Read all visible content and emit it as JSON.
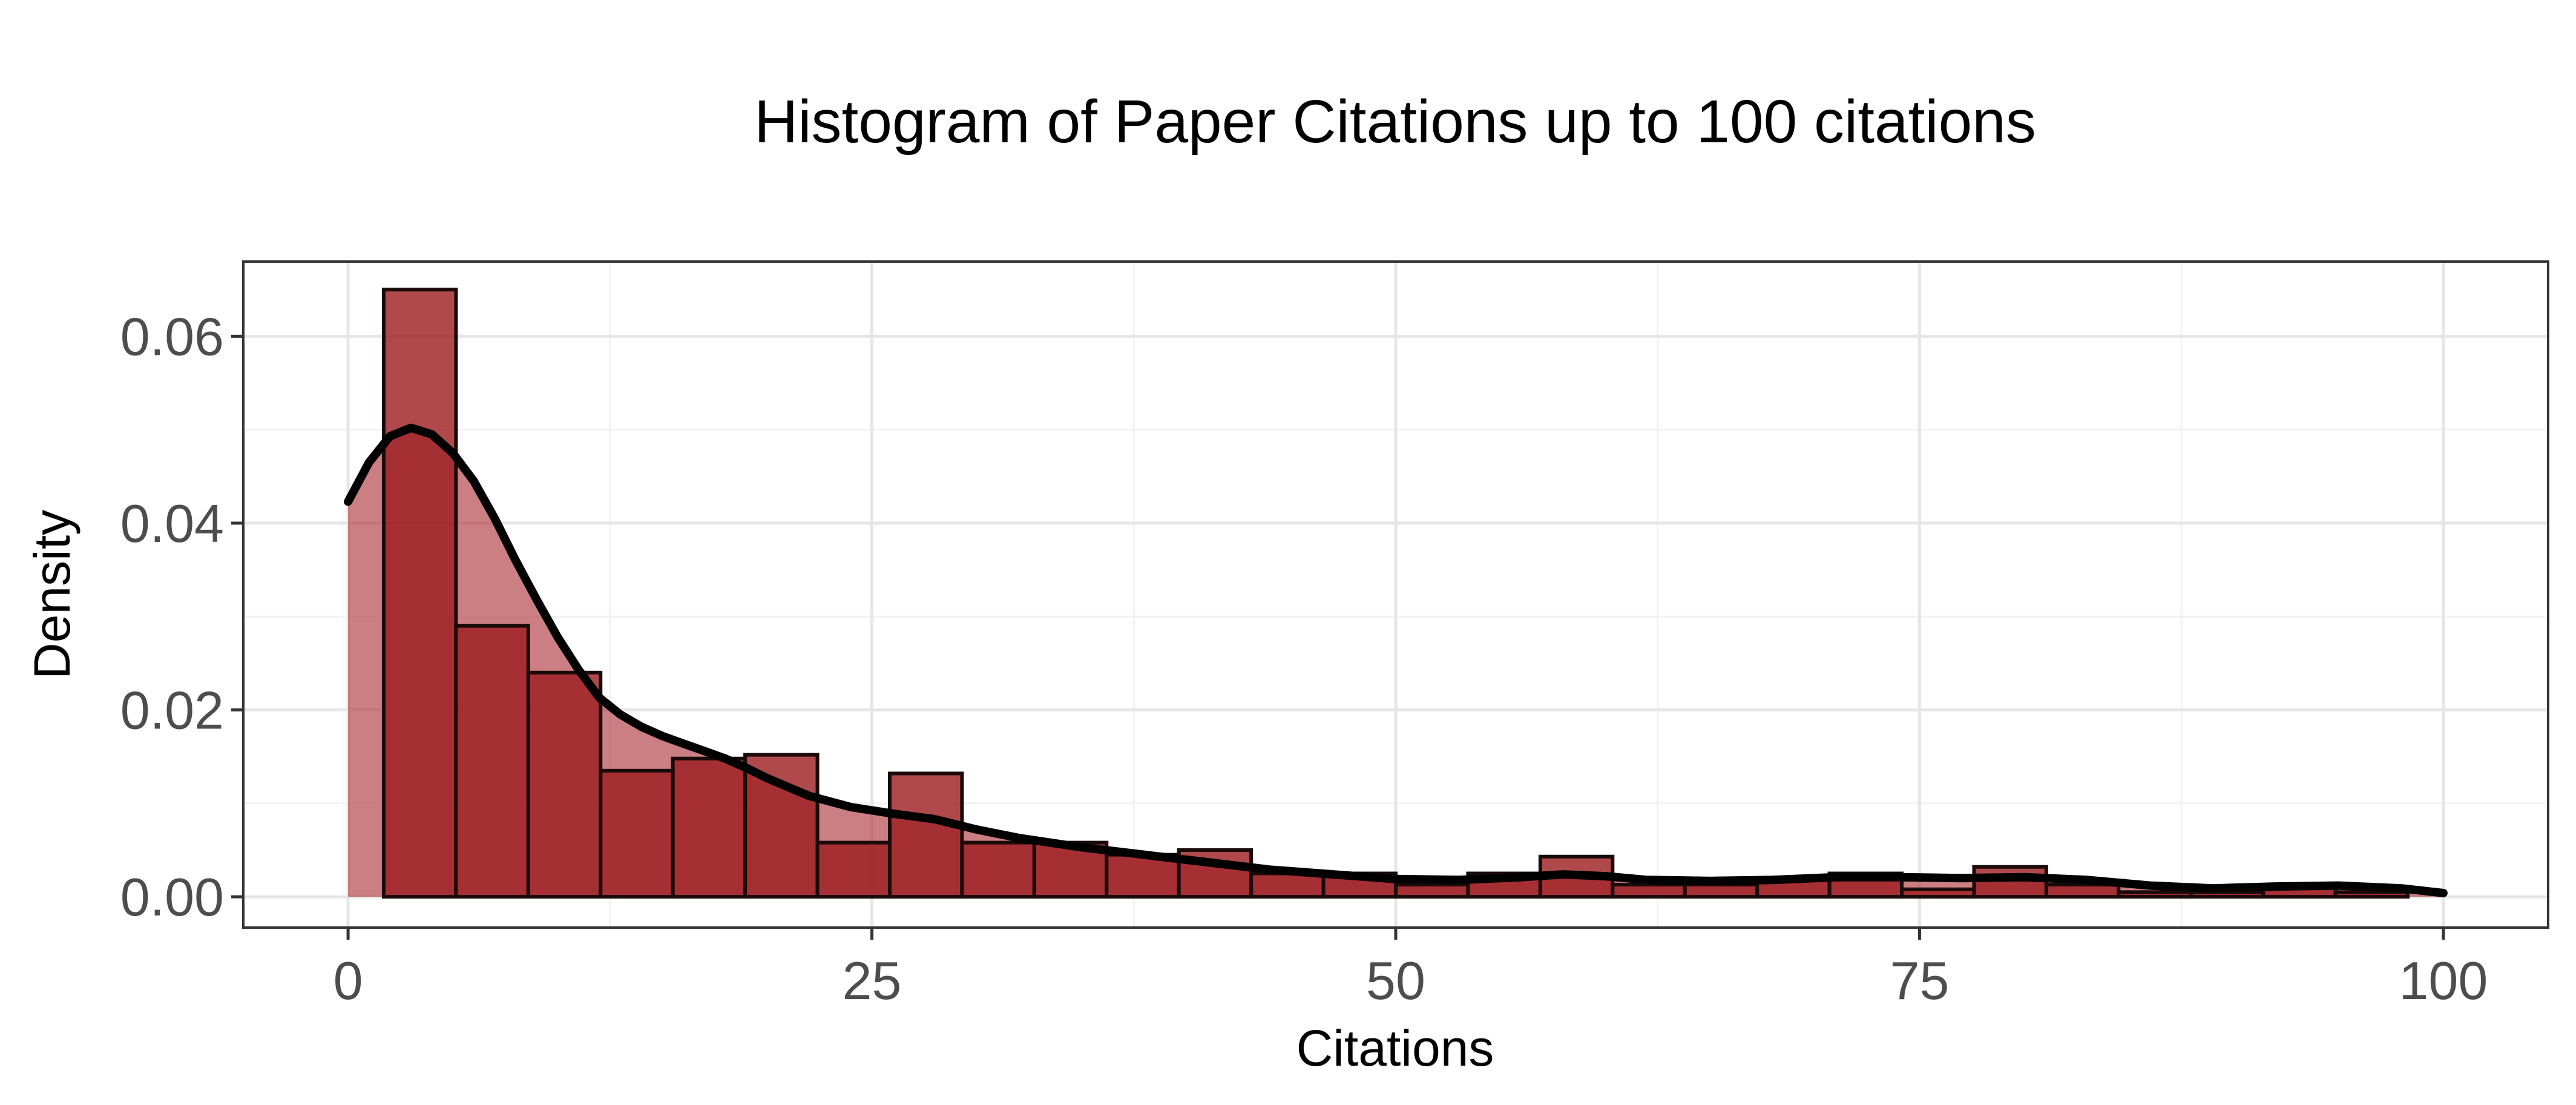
{
  "chart_data": {
    "type": "bar",
    "title": "Histogram of Paper Citations up to 100 citations",
    "xlabel": "Citations",
    "ylabel": "Density",
    "xlim": [
      -5,
      105
    ],
    "ylim": [
      -0.0033,
      0.068
    ],
    "x_ticks": [
      0,
      25,
      50,
      75,
      100
    ],
    "x_tick_labels": [
      "0",
      "25",
      "50",
      "75",
      "100"
    ],
    "y_ticks": [
      0.0,
      0.02,
      0.04,
      0.06
    ],
    "y_tick_labels": [
      "0.00",
      "0.02",
      "0.04",
      "0.06"
    ],
    "grid": true,
    "legend": "none",
    "colors": {
      "bar_fill": "#9b1c1f",
      "bar_stroke": "#1a0a0a",
      "density_fill": "#b03a3f",
      "density_line": "#000000",
      "panel_border": "#333333",
      "grid_major": "#e6e6e6",
      "grid_minor": "#f2f2f2"
    },
    "bin_width": 3.45,
    "bins": [
      {
        "x0": 1.7,
        "x1": 5.15,
        "density": 0.065
      },
      {
        "x0": 5.15,
        "x1": 8.6,
        "density": 0.029
      },
      {
        "x0": 8.6,
        "x1": 12.05,
        "density": 0.024
      },
      {
        "x0": 12.05,
        "x1": 15.5,
        "density": 0.0135
      },
      {
        "x0": 15.5,
        "x1": 18.95,
        "density": 0.0148
      },
      {
        "x0": 18.95,
        "x1": 22.4,
        "density": 0.0152
      },
      {
        "x0": 22.4,
        "x1": 25.85,
        "density": 0.0058
      },
      {
        "x0": 25.85,
        "x1": 29.3,
        "density": 0.0132
      },
      {
        "x0": 29.3,
        "x1": 32.75,
        "density": 0.0058
      },
      {
        "x0": 32.75,
        "x1": 36.2,
        "density": 0.0058
      },
      {
        "x0": 36.2,
        "x1": 39.65,
        "density": 0.0045
      },
      {
        "x0": 39.65,
        "x1": 43.1,
        "density": 0.005
      },
      {
        "x0": 43.1,
        "x1": 46.55,
        "density": 0.0025
      },
      {
        "x0": 46.55,
        "x1": 50.0,
        "density": 0.0025
      },
      {
        "x0": 50.0,
        "x1": 53.45,
        "density": 0.0013
      },
      {
        "x0": 53.45,
        "x1": 56.9,
        "density": 0.0025
      },
      {
        "x0": 56.9,
        "x1": 60.35,
        "density": 0.0043
      },
      {
        "x0": 60.35,
        "x1": 63.8,
        "density": 0.0013
      },
      {
        "x0": 63.8,
        "x1": 67.25,
        "density": 0.0013
      },
      {
        "x0": 67.25,
        "x1": 70.7,
        "density": 0.002
      },
      {
        "x0": 70.7,
        "x1": 74.15,
        "density": 0.0025
      },
      {
        "x0": 74.15,
        "x1": 77.6,
        "density": 0.0008
      },
      {
        "x0": 77.6,
        "x1": 81.05,
        "density": 0.0032
      },
      {
        "x0": 81.05,
        "x1": 84.5,
        "density": 0.0013
      },
      {
        "x0": 84.5,
        "x1": 87.95,
        "density": 0.0005
      },
      {
        "x0": 87.95,
        "x1": 91.4,
        "density": 0.0005
      },
      {
        "x0": 91.4,
        "x1": 94.85,
        "density": 0.0013
      },
      {
        "x0": 94.85,
        "x1": 98.3,
        "density": 0.0005
      }
    ],
    "density_curve": {
      "x": [
        0,
        1,
        2,
        3,
        4,
        5,
        6,
        7,
        8,
        9,
        10,
        11,
        12,
        13,
        14,
        15,
        16,
        17,
        18,
        19,
        20,
        22,
        24,
        26,
        28,
        30,
        32,
        35,
        38,
        41,
        44,
        47,
        50,
        53,
        56,
        58,
        60,
        62,
        65,
        68,
        71,
        74,
        77,
        80,
        83,
        86,
        89,
        92,
        95,
        98,
        100
      ],
      "y": [
        0.0423,
        0.0465,
        0.0493,
        0.0502,
        0.0495,
        0.0475,
        0.0445,
        0.0405,
        0.036,
        0.0318,
        0.0278,
        0.0243,
        0.0213,
        0.0195,
        0.0182,
        0.0172,
        0.0164,
        0.0156,
        0.0148,
        0.0138,
        0.0127,
        0.0108,
        0.0096,
        0.0089,
        0.0083,
        0.0072,
        0.0063,
        0.0053,
        0.0045,
        0.0037,
        0.0029,
        0.0024,
        0.0019,
        0.0018,
        0.0021,
        0.0024,
        0.0022,
        0.0018,
        0.0017,
        0.0018,
        0.0021,
        0.0021,
        0.002,
        0.0021,
        0.0018,
        0.0012,
        0.0009,
        0.0011,
        0.0012,
        0.0009,
        0.0004
      ]
    }
  }
}
